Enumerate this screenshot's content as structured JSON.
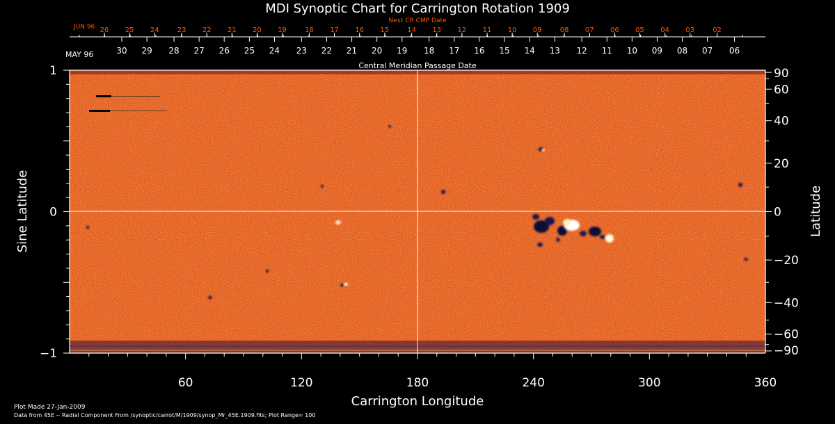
{
  "chart_data": {
    "type": "heatmap",
    "title": "MDI Synoptic Chart for Carrington Rotation 1909",
    "xlabel": "Carrington Longitude",
    "ylabel_left": "Sine Latitude",
    "ylabel_right": "Latitude",
    "xlim": [
      0,
      360
    ],
    "ylim": [
      -1,
      1
    ],
    "x_ticks": [
      "60",
      "120",
      "180",
      "240",
      "300",
      "360"
    ],
    "x_tick_values": [
      60,
      120,
      180,
      240,
      300,
      360
    ],
    "y_left_ticks": [
      "1",
      "0",
      "−1"
    ],
    "y_left_tick_values": [
      1,
      0,
      -1
    ],
    "y_right_ticks": [
      "90",
      "60",
      "40",
      "20",
      "0",
      "−20",
      "−40",
      "−60",
      "−90"
    ],
    "y_right_tick_values": [
      90,
      60,
      40,
      20,
      0,
      -20,
      -40,
      -60,
      -90
    ],
    "top_axis_next": {
      "title": "Next CR CMP Date",
      "month": "JUN 96",
      "labels": [
        "26",
        "25",
        "24",
        "23",
        "22",
        "21",
        "20",
        "19",
        "18",
        "17",
        "16",
        "15",
        "14",
        "13",
        "12",
        "11",
        "10",
        "09",
        "08",
        "07",
        "06",
        "05",
        "04",
        "03",
        "02"
      ],
      "longitudes": [
        18,
        31,
        44,
        58,
        71,
        84,
        97,
        110,
        124,
        137,
        150,
        163,
        177,
        190,
        203,
        216,
        229,
        242,
        256,
        269,
        282,
        295,
        308,
        321,
        335
      ]
    },
    "top_axis_cmp": {
      "title": "Central Meridian Passage Date",
      "month": "MAY 96",
      "labels": [
        "30",
        "29",
        "28",
        "27",
        "26",
        "25",
        "24",
        "23",
        "22",
        "21",
        "20",
        "19",
        "18",
        "17",
        "16",
        "15",
        "14",
        "13",
        "12",
        "11",
        "10",
        "09",
        "08",
        "07",
        "06"
      ],
      "longitudes": [
        27,
        40,
        54,
        67,
        80,
        93,
        106,
        120,
        133,
        146,
        159,
        172,
        186,
        199,
        212,
        225,
        238,
        251,
        265,
        278,
        291,
        304,
        317,
        330,
        344
      ]
    },
    "grid": "crosshair at longitude 180 and latitude 0",
    "colormap": "magnetogram: orange background, white/yellow positive polarity, dark blue/black negative polarity",
    "plot_range": "100"
  },
  "footer": {
    "plot_made": "Plot Made 27-Jan-2009",
    "data_from": "Data from 45E -- Radial Component From /synoptic/carrot/M/1909/synop_Mr_45E.1909.fits; Plot Range=  100"
  },
  "colors": {
    "background": "#000000",
    "field": "#e85a14",
    "accent": "#ff5500",
    "text": "#ffffff"
  }
}
